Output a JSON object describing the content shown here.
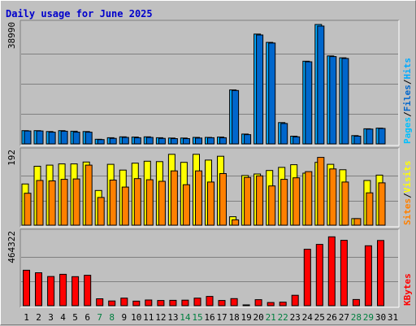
{
  "title": "Daily usage for June 2025",
  "chart_data": {
    "type": "bar",
    "categories": [
      "1",
      "2",
      "3",
      "4",
      "5",
      "6",
      "7",
      "8",
      "9",
      "10",
      "11",
      "12",
      "13",
      "14",
      "15",
      "16",
      "17",
      "18",
      "19",
      "20",
      "21",
      "22",
      "23",
      "24",
      "25",
      "26",
      "27",
      "28",
      "29",
      "30",
      "31"
    ],
    "weekend_days": [
      7,
      8,
      14,
      15,
      21,
      22,
      28,
      29
    ],
    "colors": {
      "hits": "#00aaff",
      "files": "#0066cc",
      "pages": "#00c0ff",
      "visits": "#ffff00",
      "sites": "#ff8000",
      "kbytes": "#ff0000",
      "weekday_tick": "#000000",
      "weekend_tick": "#007f3f"
    },
    "panels": [
      {
        "id": "hits-files-pages",
        "ymax_label": "38990",
        "ylim": [
          0,
          38990
        ],
        "legend": [
          {
            "text": "Pages",
            "color": "#00c0ff"
          },
          {
            "text": "Files",
            "color": "#0066cc"
          },
          {
            "text": "Hits",
            "color": "#00aaff"
          }
        ],
        "series": [
          {
            "name": "Hits",
            "values": [
              4300,
              4300,
              4000,
              4300,
              4100,
              4000,
              1500,
              2000,
              2300,
              2200,
              2300,
              2000,
              1900,
              1900,
              2100,
              2100,
              2200,
              17500,
              3200,
              35600,
              32900,
              6900,
              2500,
              26800,
              38700,
              28500,
              27900,
              2700,
              4900,
              5100,
              0
            ]
          },
          {
            "name": "Files",
            "values": [
              4200,
              4200,
              3800,
              4100,
              3800,
              3800,
              1400,
              1800,
              2100,
              2000,
              2100,
              1800,
              1700,
              1700,
              1900,
              2000,
              2000,
              17300,
              3000,
              35300,
              32700,
              6600,
              2300,
              26600,
              38200,
              28300,
              27700,
              2500,
              4800,
              5000,
              0
            ]
          }
        ]
      },
      {
        "id": "visits-sites",
        "ymax_label": "192",
        "ylim": [
          0,
          192
        ],
        "legend": [
          {
            "text": "Sites",
            "color": "#ff8000"
          },
          {
            "text": "Visits",
            "color": "#ffff00"
          }
        ],
        "series": [
          {
            "name": "Visits",
            "values": [
              107,
              153,
              156,
              159,
              159,
              164,
              90,
              158,
              143,
              161,
              166,
              165,
              184,
              163,
              184,
              169,
              179,
              22,
              129,
              133,
              142,
              150,
              157,
              135,
              163,
              158,
              144,
              17,
              116,
              130,
              0
            ]
          },
          {
            "name": "Sites",
            "values": [
              83,
              116,
              115,
              119,
              120,
              156,
              72,
              117,
              99,
              121,
              118,
              114,
              141,
              105,
              141,
              112,
              134,
              14,
              124,
              128,
              102,
              119,
              123,
              139,
              176,
              146,
              112,
              17,
              84,
              110,
              0
            ]
          }
        ]
      },
      {
        "id": "kbytes",
        "ymax_label": "464322",
        "ylim": [
          0,
          464322
        ],
        "legend": [
          {
            "text": "KBytes",
            "color": "#ff0000"
          }
        ],
        "series": [
          {
            "name": "KBytes",
            "values": [
              225000,
              209000,
              185000,
              199000,
              184000,
              193000,
              44000,
              30000,
              48000,
              29000,
              36000,
              33000,
              34000,
              35000,
              48000,
              59000,
              33000,
              45000,
              5000,
              38000,
              20000,
              22000,
              66000,
              358000,
              389000,
              437000,
              415000,
              39000,
              380000,
              414000,
              0
            ]
          }
        ]
      }
    ]
  }
}
